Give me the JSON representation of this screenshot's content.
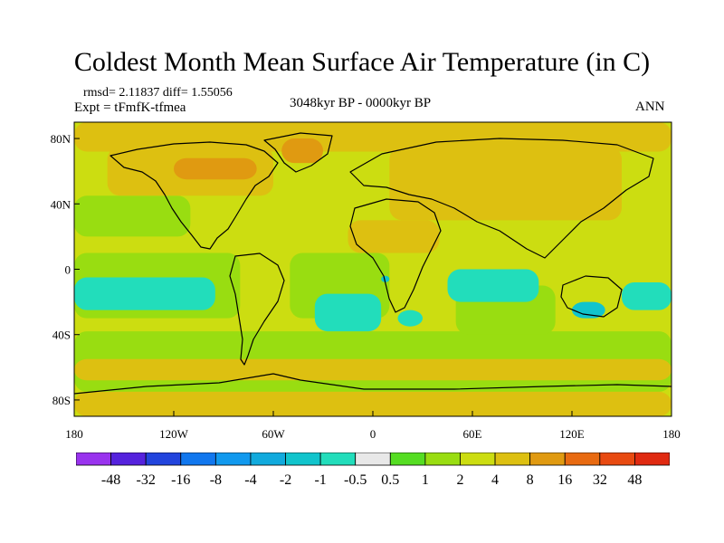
{
  "chart_data": {
    "type": "heatmap",
    "title": "Coldest Month Mean Surface Air Temperature (in C)",
    "stats_line": "rmsd= 2.11837  diff= 1.55056",
    "experiment_line": "Expt = tFmfK-tfmea",
    "period": "3048kyr BP - 0000kyr BP",
    "season": "ANN",
    "x_ticks": [
      "180",
      "120W",
      "60W",
      "0",
      "60E",
      "120E",
      "180"
    ],
    "x_tick_values": [
      -180,
      -120,
      -60,
      0,
      60,
      120,
      180
    ],
    "y_ticks": [
      "80N",
      "40N",
      "0",
      "40S",
      "80S"
    ],
    "y_tick_values": [
      80,
      40,
      0,
      -40,
      -80
    ],
    "xlim": [
      -180,
      180
    ],
    "ylim": [
      -90,
      90
    ],
    "colorbar": {
      "labels": [
        "-48",
        "-32",
        "-16",
        "-8",
        "-4",
        "-2",
        "-1",
        "-0.5",
        "0.5",
        "1",
        "2",
        "4",
        "8",
        "16",
        "32",
        "48"
      ],
      "colors": [
        "#9933ee",
        "#5522dd",
        "#2244dd",
        "#1177ee",
        "#1199ee",
        "#11aadd",
        "#11c4cc",
        "#22ddbb",
        "#e8e8e8",
        "#55dd22",
        "#99dd11",
        "#ccdd11",
        "#ddc011",
        "#e09a11",
        "#e86a11",
        "#e84a11",
        "#e02a11"
      ]
    },
    "regions": [
      {
        "name": "background-positive",
        "level": "2",
        "lon": [
          -180,
          180
        ],
        "lat": [
          -90,
          90
        ]
      },
      {
        "name": "southern-ocean-band",
        "level": "1",
        "lon": [
          -180,
          180
        ],
        "lat": [
          -75,
          -38
        ]
      },
      {
        "name": "tropical-pacific-band",
        "level": "1",
        "lon": [
          -180,
          -80
        ],
        "lat": [
          -30,
          10
        ]
      },
      {
        "name": "atlantic-tropics",
        "level": "1",
        "lon": [
          -50,
          10
        ],
        "lat": [
          -30,
          10
        ]
      },
      {
        "name": "indian-ocean-south",
        "level": "1",
        "lon": [
          50,
          110
        ],
        "lat": [
          -40,
          -10
        ]
      },
      {
        "name": "pacific-northwest",
        "level": "1",
        "lon": [
          -180,
          -110
        ],
        "lat": [
          20,
          45
        ]
      },
      {
        "name": "eurasia-warm",
        "level": "4",
        "lon": [
          10,
          150
        ],
        "lat": [
          30,
          75
        ]
      },
      {
        "name": "north-america-warm",
        "level": "4",
        "lon": [
          -160,
          -60
        ],
        "lat": [
          45,
          75
        ]
      },
      {
        "name": "arctic-band",
        "level": "4",
        "lon": [
          -180,
          180
        ],
        "lat": [
          72,
          90
        ]
      },
      {
        "name": "sahara-warm",
        "level": "4",
        "lon": [
          -15,
          40
        ],
        "lat": [
          10,
          30
        ]
      },
      {
        "name": "southern-warm-band",
        "level": "4",
        "lon": [
          -180,
          180
        ],
        "lat": [
          -68,
          -55
        ]
      },
      {
        "name": "canada-hot",
        "level": "8",
        "lon": [
          -120,
          -70
        ],
        "lat": [
          55,
          68
        ]
      },
      {
        "name": "greenland-hot",
        "level": "8",
        "lon": [
          -55,
          -30
        ],
        "lat": [
          65,
          80
        ]
      },
      {
        "name": "antarctic-warm",
        "level": "4",
        "lon": [
          -180,
          180
        ],
        "lat": [
          -90,
          -75
        ]
      },
      {
        "name": "neutral-pacific",
        "level": "-0.5",
        "lon": [
          -180,
          -95
        ],
        "lat": [
          -25,
          -5
        ]
      },
      {
        "name": "neutral-south-atlantic",
        "level": "-0.5",
        "lon": [
          -35,
          5
        ],
        "lat": [
          -38,
          -15
        ]
      },
      {
        "name": "neutral-indian",
        "level": "-0.5",
        "lon": [
          45,
          100
        ],
        "lat": [
          -20,
          0
        ]
      },
      {
        "name": "neutral-australia-east",
        "level": "-0.5",
        "lon": [
          150,
          180
        ],
        "lat": [
          -25,
          -8
        ]
      },
      {
        "name": "neutral-south-africa",
        "level": "-0.5",
        "lon": [
          15,
          30
        ],
        "lat": [
          -35,
          -25
        ]
      },
      {
        "name": "cool-australia",
        "level": "-1",
        "lon": [
          120,
          140
        ],
        "lat": [
          -30,
          -20
        ]
      },
      {
        "name": "cool-west-africa-patch",
        "level": "-1",
        "lon": [
          5,
          10
        ],
        "lat": [
          -8,
          -4
        ]
      }
    ]
  }
}
